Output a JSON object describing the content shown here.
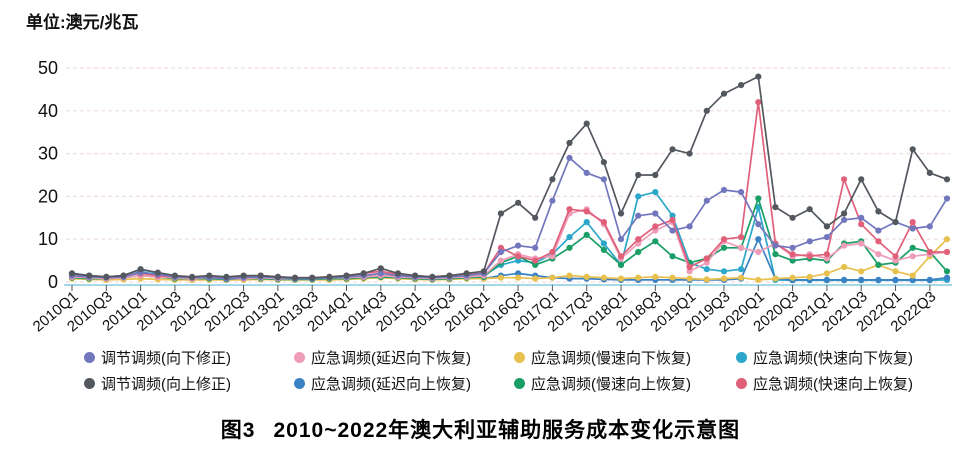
{
  "unit_label": "单位:澳元/兆瓦",
  "caption": {
    "label": "图3",
    "title": "2010~2022年澳大利亚辅助服务成本变化示意图"
  },
  "chart_data": {
    "type": "line",
    "title": "图3 2010~2022年澳大利亚辅助服务成本变化示意图",
    "ylabel": "单位:澳元/兆瓦",
    "xlabel": "",
    "ylim": [
      0,
      50
    ],
    "yticks": [
      0,
      10,
      20,
      30,
      40,
      50
    ],
    "grid": true,
    "legend_position": "bottom",
    "x_label_step": 2,
    "categories": [
      "2010Q1",
      "2010Q2",
      "2010Q3",
      "2010Q4",
      "2011Q1",
      "2011Q2",
      "2011Q3",
      "2011Q4",
      "2012Q1",
      "2012Q2",
      "2012Q3",
      "2012Q4",
      "2013Q1",
      "2013Q2",
      "2013Q3",
      "2013Q4",
      "2014Q1",
      "2014Q2",
      "2014Q3",
      "2014Q4",
      "2015Q1",
      "2015Q2",
      "2015Q3",
      "2015Q4",
      "2016Q1",
      "2016Q2",
      "2016Q3",
      "2016Q4",
      "2017Q1",
      "2017Q2",
      "2017Q3",
      "2017Q4",
      "2018Q1",
      "2018Q2",
      "2018Q3",
      "2018Q4",
      "2019Q1",
      "2019Q2",
      "2019Q3",
      "2019Q4",
      "2020Q1",
      "2020Q2",
      "2020Q3",
      "2020Q4",
      "2021Q1",
      "2021Q2",
      "2021Q3",
      "2021Q4",
      "2022Q1",
      "2022Q2",
      "2022Q3",
      "2022Q4"
    ],
    "series": [
      {
        "name": "调节调频(向下修正)",
        "color": "#7277bd",
        "values": [
          1.5,
          1.2,
          1.0,
          1.2,
          2.2,
          1.8,
          1.2,
          1.0,
          1.0,
          0.8,
          1.0,
          1.2,
          1.0,
          0.8,
          0.8,
          1.0,
          1.2,
          1.5,
          2.0,
          1.5,
          1.2,
          1.0,
          1.2,
          1.5,
          2.0,
          7.0,
          8.5,
          8.0,
          19.0,
          29.0,
          25.5,
          24.0,
          10.0,
          15.5,
          16.0,
          12.0,
          13.0,
          19.0,
          21.5,
          21.0,
          13.5,
          8.5,
          8.0,
          9.5,
          10.5,
          14.5,
          15.0,
          12.0,
          14.0,
          12.5,
          13.0,
          19.5
        ]
      },
      {
        "name": "应急调频(延迟向下恢复)",
        "color": "#ef9cb8",
        "values": [
          1.2,
          1.0,
          0.8,
          1.0,
          1.5,
          1.2,
          1.0,
          0.8,
          1.0,
          0.8,
          0.8,
          1.0,
          0.8,
          0.8,
          0.8,
          1.0,
          1.0,
          1.2,
          1.5,
          1.2,
          1.0,
          0.8,
          1.0,
          1.2,
          1.5,
          5.0,
          6.5,
          5.5,
          6.0,
          16.0,
          17.0,
          13.5,
          5.5,
          9.0,
          12.0,
          14.0,
          2.5,
          4.5,
          9.5,
          8.0,
          7.0,
          9.0,
          6.0,
          6.5,
          5.5,
          8.5,
          9.0,
          6.5,
          5.0,
          6.0,
          6.5,
          7.0
        ]
      },
      {
        "name": "应急调频(慢速向下恢复)",
        "color": "#e8c04d",
        "values": [
          0.8,
          0.6,
          0.5,
          0.6,
          0.8,
          0.6,
          0.5,
          0.5,
          0.5,
          0.5,
          0.5,
          0.6,
          0.5,
          0.5,
          0.5,
          0.5,
          0.6,
          0.8,
          1.0,
          0.8,
          0.6,
          0.5,
          0.6,
          0.8,
          0.8,
          1.0,
          1.0,
          0.8,
          1.0,
          1.5,
          1.2,
          1.0,
          0.8,
          1.0,
          1.2,
          1.0,
          0.8,
          0.6,
          0.8,
          1.0,
          0.5,
          0.8,
          1.0,
          1.2,
          2.0,
          3.5,
          2.5,
          4.0,
          2.5,
          1.5,
          6.0,
          10.0
        ]
      },
      {
        "name": "应急调频(快速向下恢复)",
        "color": "#2ba7c9",
        "values": [
          2.0,
          1.5,
          1.2,
          1.5,
          3.0,
          2.0,
          1.2,
          1.0,
          1.2,
          0.8,
          1.0,
          1.2,
          0.8,
          0.8,
          0.8,
          1.0,
          1.0,
          1.2,
          1.5,
          1.2,
          1.0,
          0.8,
          1.0,
          1.2,
          1.5,
          4.0,
          5.0,
          4.5,
          6.5,
          10.5,
          14.0,
          9.0,
          4.0,
          20.0,
          21.0,
          15.5,
          4.5,
          3.0,
          2.5,
          3.0,
          17.5,
          0.5,
          0.4,
          0.4,
          0.4,
          0.4,
          0.4,
          0.4,
          0.4,
          0.4,
          0.4,
          0.5
        ]
      },
      {
        "name": "调节调频(向上修正)",
        "color": "#53585f",
        "values": [
          2.0,
          1.5,
          1.2,
          1.5,
          3.0,
          2.2,
          1.5,
          1.2,
          1.5,
          1.2,
          1.5,
          1.5,
          1.2,
          1.0,
          1.0,
          1.2,
          1.5,
          2.0,
          3.2,
          2.0,
          1.5,
          1.2,
          1.5,
          2.0,
          2.5,
          16.0,
          18.5,
          15.0,
          24.0,
          32.5,
          37.0,
          28.0,
          16.0,
          25.0,
          25.0,
          31.0,
          30.0,
          40.0,
          44.0,
          46.0,
          48.0,
          17.5,
          15.0,
          17.0,
          13.0,
          16.0,
          24.0,
          16.5,
          14.0,
          31.0,
          25.5,
          24.0
        ]
      },
      {
        "name": "应急调频(延迟向上恢复)",
        "color": "#3b82c4",
        "values": [
          1.0,
          0.8,
          0.8,
          1.0,
          2.5,
          1.5,
          1.0,
          0.8,
          0.8,
          0.6,
          0.8,
          1.0,
          0.8,
          0.6,
          0.6,
          0.8,
          0.8,
          1.0,
          1.2,
          1.0,
          0.8,
          0.6,
          0.8,
          1.0,
          0.8,
          1.5,
          2.0,
          1.5,
          1.0,
          0.8,
          0.8,
          0.6,
          0.5,
          0.5,
          0.5,
          0.5,
          0.5,
          0.5,
          0.5,
          0.8,
          10.0,
          0.8,
          0.5,
          0.5,
          0.5,
          0.5,
          0.5,
          0.5,
          0.5,
          0.5,
          0.5,
          1.0
        ]
      },
      {
        "name": "应急调频(慢速向上恢复)",
        "color": "#1a9e66",
        "values": [
          1.0,
          0.8,
          0.8,
          1.0,
          1.5,
          1.2,
          0.8,
          0.8,
          0.8,
          0.6,
          0.8,
          0.8,
          0.6,
          0.6,
          0.6,
          0.8,
          0.8,
          1.0,
          1.2,
          1.0,
          0.8,
          0.6,
          0.8,
          1.0,
          1.2,
          4.5,
          6.0,
          4.0,
          5.5,
          8.0,
          11.0,
          7.5,
          4.0,
          7.0,
          9.5,
          6.0,
          4.5,
          5.5,
          8.0,
          8.0,
          19.5,
          6.5,
          5.0,
          5.5,
          5.0,
          9.0,
          9.5,
          4.0,
          4.5,
          8.0,
          7.0,
          2.5
        ]
      },
      {
        "name": "应急调频(快速向上恢复)",
        "color": "#e0607a",
        "values": [
          1.8,
          1.5,
          1.2,
          1.5,
          2.0,
          1.5,
          1.2,
          1.0,
          1.2,
          1.0,
          1.2,
          1.5,
          1.2,
          1.0,
          1.0,
          1.2,
          1.5,
          2.0,
          2.5,
          1.8,
          1.5,
          1.2,
          1.5,
          1.8,
          2.0,
          8.0,
          6.0,
          5.0,
          7.0,
          17.0,
          16.5,
          14.0,
          6.0,
          10.0,
          13.0,
          14.5,
          3.5,
          5.5,
          10.0,
          10.5,
          42.0,
          9.0,
          6.5,
          6.0,
          6.5,
          24.0,
          13.5,
          9.5,
          6.0,
          14.0,
          7.0,
          7.0
        ]
      }
    ]
  }
}
